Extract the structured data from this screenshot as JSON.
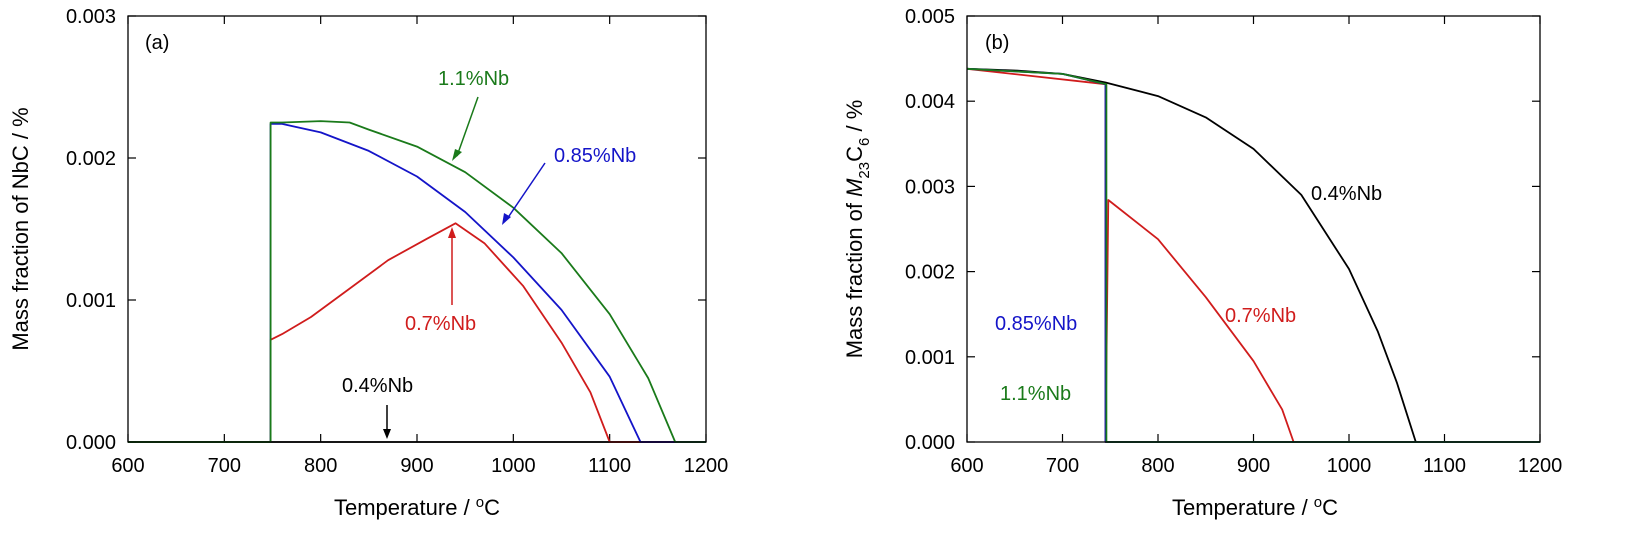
{
  "chart_data": [
    {
      "type": "line",
      "panel_label": "(a)",
      "xlabel": "Temperature / °C",
      "ylabel": "Mass fraction of NbC / %",
      "xlim": [
        600,
        1200
      ],
      "ylim": [
        0,
        0.003
      ],
      "xticks": [
        "600",
        "700",
        "800",
        "900",
        "1000",
        "1100",
        "1200"
      ],
      "yticks": [
        "0.000",
        "0.001",
        "0.002",
        "0.003"
      ],
      "colors": {
        "0.4%Nb": "#000000",
        "0.7%Nb": "#d01c1c",
        "0.85%Nb": "#1414c8",
        "1.1%Nb": "#1a7a1a"
      },
      "series": [
        {
          "name": "0.4%Nb",
          "color": "#000000",
          "x": [
            600,
            1200
          ],
          "y": [
            0,
            0
          ]
        },
        {
          "name": "0.7%Nb",
          "color": "#d01c1c",
          "x": [
            748,
            748,
            760,
            790,
            830,
            870,
            910,
            940,
            970,
            1010,
            1050,
            1080,
            1100,
            1200
          ],
          "y": [
            0,
            0.00072,
            0.00076,
            0.00088,
            0.00108,
            0.00128,
            0.00143,
            0.00154,
            0.0014,
            0.0011,
            0.0007,
            0.00035,
            0,
            0
          ]
        },
        {
          "name": "0.85%Nb",
          "color": "#1414c8",
          "x": [
            748,
            748,
            760,
            800,
            850,
            900,
            950,
            1000,
            1050,
            1100,
            1132,
            1200
          ],
          "y": [
            0,
            0.00224,
            0.00224,
            0.00218,
            0.00205,
            0.00187,
            0.00162,
            0.0013,
            0.00093,
            0.00046,
            0,
            0
          ]
        },
        {
          "name": "1.1%Nb",
          "color": "#1a7a1a",
          "x": [
            600,
            748,
            748,
            760,
            800,
            830,
            850,
            900,
            950,
            1000,
            1050,
            1100,
            1140,
            1168,
            1200
          ],
          "y": [
            0,
            0,
            0.00225,
            0.00225,
            0.00226,
            0.00225,
            0.0022,
            0.00208,
            0.0019,
            0.00165,
            0.00133,
            0.0009,
            0.00045,
            0,
            0
          ]
        }
      ],
      "annotations": [
        {
          "text": "1.1%Nb",
          "color": "#1a7a1a"
        },
        {
          "text": "0.85%Nb",
          "color": "#1414c8"
        },
        {
          "text": "0.7%Nb",
          "color": "#d01c1c"
        },
        {
          "text": "0.4%Nb",
          "color": "#000000"
        }
      ]
    },
    {
      "type": "line",
      "panel_label": "(b)",
      "xlabel": "Temperature / °C",
      "ylabel": "Mass fraction of M23C6 / %",
      "xlim": [
        600,
        1200
      ],
      "ylim": [
        0,
        0.005
      ],
      "xticks": [
        "600",
        "700",
        "800",
        "900",
        "1000",
        "1100",
        "1200"
      ],
      "yticks": [
        "0.000",
        "0.001",
        "0.002",
        "0.003",
        "0.004",
        "0.005"
      ],
      "series": [
        {
          "name": "0.4%Nb",
          "color": "#000000",
          "x": [
            600,
            650,
            700,
            745,
            800,
            850,
            900,
            950,
            1000,
            1030,
            1050,
            1060,
            1070
          ],
          "y": [
            0.00438,
            0.00436,
            0.00432,
            0.00422,
            0.00406,
            0.00381,
            0.00344,
            0.0029,
            0.00203,
            0.0013,
            0.0007,
            0.00035,
            0
          ]
        },
        {
          "name": "0.7%Nb",
          "color": "#d01c1c",
          "x": [
            600,
            745,
            745,
            748,
            800,
            850,
            900,
            930,
            942
          ],
          "y": [
            0.00438,
            0.0042,
            0,
            0.00284,
            0.00238,
            0.0017,
            0.00095,
            0.00038,
            0
          ]
        },
        {
          "name": "0.85%Nb",
          "color": "#1414c8",
          "x": [
            600,
            700,
            745,
            745,
            1200
          ],
          "y": [
            0.00438,
            0.00432,
            0.0042,
            0,
            0
          ]
        },
        {
          "name": "1.1%Nb",
          "color": "#1a7a1a",
          "x": [
            600,
            700,
            746,
            746,
            1200
          ],
          "y": [
            0.00438,
            0.00432,
            0.0042,
            0,
            0
          ]
        }
      ],
      "annotations": [
        {
          "text": "0.4%Nb",
          "color": "#000000"
        },
        {
          "text": "0.7%Nb",
          "color": "#d01c1c"
        },
        {
          "text": "0.85%Nb",
          "color": "#1414c8"
        },
        {
          "text": "1.1%Nb",
          "color": "#1a7a1a"
        }
      ]
    }
  ]
}
